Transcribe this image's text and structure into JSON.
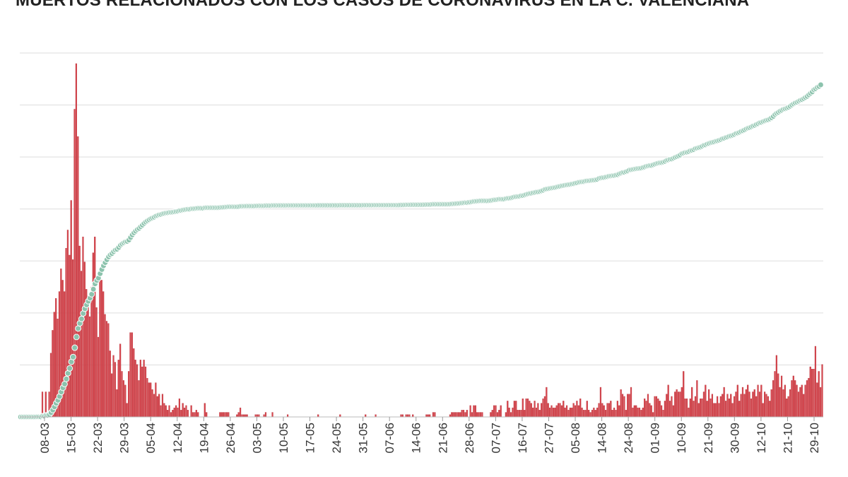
{
  "chart_data": {
    "type": "bar",
    "title": "MUERTOS RELACIONADOS CON LOS CASOS DE CORONAVIRUS EN LA C. VALENCIANA",
    "xlabel": "",
    "ylabel": "",
    "grid": true,
    "legend": "none",
    "colors": {
      "bars": "#d9474f",
      "bar_stroke": "#b8323a",
      "cumulative": "#8cc3ad",
      "grid": "#dddddd",
      "text": "#333333"
    },
    "x_tick_labels": [
      "08-03",
      "15-03",
      "22-03",
      "29-03",
      "05-04",
      "12-04",
      "19-04",
      "26-04",
      "03-05",
      "10-05",
      "17-05",
      "24-05",
      "31-05",
      "07-06",
      "14-06",
      "21-06",
      "28-06",
      "07-07",
      "16-07",
      "27-07",
      "05-08",
      "14-08",
      "24-08",
      "01-09",
      "10-09",
      "21-09",
      "30-09",
      "12-10",
      "21-10",
      "29-10"
    ],
    "bars": [
      0,
      0,
      0,
      0,
      0,
      0,
      0,
      0,
      0,
      0,
      1,
      0,
      0,
      11,
      0,
      11,
      0,
      11,
      28,
      38,
      46,
      52,
      43,
      55,
      65,
      60,
      55,
      74,
      82,
      71,
      95,
      69,
      135,
      155,
      123,
      75,
      64,
      79,
      68,
      56,
      53,
      44,
      57,
      72,
      79,
      48,
      35,
      64,
      60,
      55,
      45,
      42,
      41,
      29,
      19,
      27,
      24,
      12,
      25,
      32,
      20,
      16,
      14,
      6,
      20,
      37,
      37,
      30,
      25,
      23,
      16,
      25,
      22,
      25,
      22,
      17,
      15,
      15,
      12,
      10,
      15,
      9,
      10,
      5,
      10,
      6,
      5,
      3,
      5,
      2,
      3,
      4,
      5,
      4,
      8,
      3,
      6,
      4,
      5,
      3,
      0,
      5,
      2,
      2,
      3,
      2,
      0,
      0,
      0,
      6,
      2,
      0,
      0,
      0,
      0,
      0,
      0,
      0,
      2,
      2,
      2,
      2,
      2,
      2,
      0,
      0,
      0,
      0,
      1,
      2,
      4,
      1,
      1,
      1,
      1,
      0,
      0,
      0,
      0,
      1,
      1,
      1,
      0,
      0,
      1,
      2,
      0,
      0,
      0,
      2,
      0,
      0,
      0,
      0,
      0,
      0,
      0,
      0,
      1,
      0,
      0,
      0,
      0,
      0,
      0,
      0,
      0,
      0,
      0,
      0,
      0,
      0,
      0,
      0,
      0,
      0,
      1,
      0,
      0,
      0,
      0,
      0,
      0,
      0,
      0,
      0,
      0,
      0,
      0,
      1,
      0,
      0,
      0,
      0,
      0,
      0,
      0,
      0,
      0,
      0,
      0,
      0,
      0,
      0,
      1,
      0,
      0,
      0,
      0,
      0,
      1,
      0,
      0,
      0,
      0,
      0,
      0,
      0,
      0,
      0,
      0,
      0,
      0,
      0,
      0,
      1,
      1,
      0,
      1,
      1,
      1,
      0,
      1,
      0,
      0,
      0,
      0,
      0,
      0,
      0,
      1,
      1,
      1,
      0,
      2,
      2,
      0,
      0,
      0,
      0,
      0,
      0,
      0,
      0,
      1,
      2,
      2,
      2,
      2,
      2,
      2,
      3,
      3,
      2,
      3,
      0,
      5,
      2,
      5,
      5,
      2,
      2,
      2,
      2,
      0,
      0,
      0,
      0,
      2,
      3,
      5,
      5,
      2,
      3,
      5,
      0,
      0,
      2,
      7,
      4,
      2,
      4,
      7,
      7,
      3,
      3,
      3,
      8,
      3,
      8,
      8,
      7,
      6,
      4,
      7,
      4,
      6,
      3,
      6,
      8,
      9,
      13,
      6,
      4,
      5,
      4,
      4,
      5,
      6,
      6,
      5,
      7,
      4,
      5,
      3,
      4,
      4,
      6,
      5,
      7,
      5,
      8,
      4,
      3,
      3,
      7,
      3,
      2,
      3,
      4,
      3,
      4,
      6,
      13,
      6,
      5,
      3,
      6,
      6,
      7,
      3,
      4,
      3,
      7,
      5,
      12,
      10,
      9,
      3,
      10,
      10,
      13,
      4,
      5,
      5,
      4,
      4,
      3,
      4,
      8,
      7,
      10,
      6,
      5,
      2,
      9,
      9,
      8,
      7,
      5,
      3,
      7,
      10,
      14,
      7,
      9,
      5,
      11,
      12,
      11,
      11,
      13,
      20,
      8,
      8,
      4,
      8,
      13,
      7,
      9,
      16,
      6,
      8,
      8,
      11,
      14,
      7,
      12,
      8,
      10,
      6,
      6,
      9,
      6,
      9,
      10,
      13,
      7,
      10,
      8,
      10,
      6,
      9,
      11,
      14,
      7,
      10,
      13,
      10,
      12,
      14,
      11,
      8,
      11,
      12,
      9,
      14,
      11,
      14,
      6,
      11,
      10,
      9,
      7,
      12,
      16,
      20,
      27,
      19,
      13,
      18,
      12,
      14,
      8,
      9,
      12,
      16,
      18,
      16,
      14,
      11,
      13,
      14,
      10,
      14,
      16,
      17,
      22,
      21,
      21,
      31,
      15,
      20,
      13,
      23
    ],
    "cumulative": [
      0,
      0,
      0,
      0,
      0,
      0,
      0,
      0,
      0,
      0,
      1,
      1,
      1,
      12,
      12,
      23,
      23,
      34,
      62,
      100,
      146,
      198,
      241,
      296,
      361,
      421,
      476,
      550,
      632,
      703,
      798,
      867,
      1002,
      1157,
      1280,
      1355,
      1419,
      1498,
      1566,
      1622,
      1675,
      1719,
      1776,
      1848,
      1927,
      1975,
      2010,
      2074,
      2134,
      2189,
      2234,
      2276,
      2317,
      2346,
      2365,
      2392,
      2416,
      2428,
      2453,
      2485,
      2505,
      2521,
      2535,
      2541,
      2561,
      2598,
      2635,
      2665,
      2690,
      2713,
      2729,
      2754,
      2776,
      2801,
      2823,
      2840,
      2855,
      2870,
      2882,
      2892,
      2907,
      2916,
      2926,
      2931,
      2941,
      2947,
      2952,
      2955,
      2960,
      2962,
      2965,
      2969,
      2974,
      2978,
      2986,
      2989,
      2995,
      2999,
      3004,
      3007,
      3007,
      3012,
      3014,
      3016,
      3019,
      3021,
      3021,
      3021,
      3021,
      3027,
      3029,
      3029,
      3029,
      3029,
      3029,
      3029,
      3029,
      3029,
      3031,
      3033,
      3035,
      3037,
      3039,
      3041,
      3041,
      3041,
      3041,
      3041,
      3042,
      3044,
      3048,
      3049,
      3050,
      3051,
      3052,
      3052,
      3052,
      3052,
      3052,
      3053,
      3054,
      3055,
      3055,
      3055,
      3056,
      3058,
      3058,
      3058,
      3058,
      3060,
      3060,
      3060,
      3060,
      3060,
      3060,
      3060,
      3060,
      3060,
      3061,
      3061,
      3061,
      3061,
      3061,
      3061,
      3061,
      3061,
      3061,
      3061,
      3061,
      3061,
      3061,
      3061,
      3061,
      3061,
      3061,
      3061,
      3062,
      3062,
      3062,
      3062,
      3062,
      3062,
      3062,
      3062,
      3062,
      3062,
      3062,
      3062,
      3062,
      3063,
      3063,
      3063,
      3063,
      3063,
      3063,
      3063,
      3063,
      3063,
      3063,
      3063,
      3063,
      3063,
      3063,
      3064,
      3064,
      3064,
      3064,
      3064,
      3064,
      3065,
      3065,
      3065,
      3065,
      3065,
      3065,
      3065,
      3065,
      3065,
      3065,
      3065,
      3065,
      3065,
      3065,
      3065,
      3066,
      3067,
      3067,
      3068,
      3069,
      3070,
      3070,
      3071,
      3071,
      3071,
      3071,
      3071,
      3071,
      3071,
      3071,
      3072,
      3073,
      3074,
      3074,
      3076,
      3078,
      3078,
      3078,
      3078,
      3078,
      3078,
      3078,
      3078,
      3078,
      3079,
      3081,
      3083,
      3085,
      3087,
      3089,
      3091,
      3094,
      3097,
      3099,
      3102,
      3102,
      3107,
      3109,
      3114,
      3119,
      3121,
      3123,
      3125,
      3127,
      3127,
      3127,
      3127,
      3127,
      3129,
      3132,
      3137,
      3142,
      3144,
      3147,
      3152,
      3152,
      3152,
      3154,
      3161,
      3165,
      3167,
      3171,
      3178,
      3185,
      3188,
      3191,
      3194,
      3202,
      3205,
      3213,
      3221,
      3228,
      3234,
      3238,
      3245,
      3249,
      3255,
      3258,
      3264,
      3272,
      3281,
      3294,
      3300,
      3304,
      3309,
      3313,
      3317,
      3322,
      3328,
      3334,
      3339,
      3346,
      3350,
      3355,
      3358,
      3362,
      3366,
      3372,
      3377,
      3384,
      3389,
      3397,
      3401,
      3404,
      3407,
      3414,
      3417,
      3419,
      3422,
      3426,
      3429,
      3433,
      3439,
      3452,
      3458,
      3463,
      3466,
      3472,
      3478,
      3485,
      3488,
      3492,
      3495,
      3502,
      3507,
      3519,
      3529,
      3538,
      3541,
      3551,
      3561,
      3574,
      3578,
      3583,
      3588,
      3592,
      3596,
      3599,
      3603,
      3611,
      3618,
      3628,
      3634,
      3639,
      3641,
      3650,
      3659,
      3667,
      3674,
      3679,
      3682,
      3689,
      3699,
      3713,
      3720,
      3729,
      3734,
      3745,
      3757,
      3768,
      3779,
      3792,
      3812,
      3820,
      3828,
      3832,
      3840,
      3853,
      3860,
      3869,
      3885,
      3891,
      3899,
      3907,
      3918,
      3932,
      3939,
      3951,
      3959,
      3969,
      3975,
      3981,
      3990,
      3996,
      4005,
      4015,
      4028,
      4035,
      4045,
      4053,
      4063,
      4069,
      4078,
      4089,
      4103,
      4110,
      4120,
      4133,
      4143,
      4155,
      4169,
      4180,
      4188,
      4199,
      4211,
      4220,
      4234,
      4245,
      4259,
      4265,
      4276,
      4286,
      4295,
      4302,
      4314,
      4330,
      4350,
      4377,
      4396,
      4409,
      4427,
      4439,
      4453,
      4461,
      4470,
      4482,
      4498,
      4516,
      4532,
      4546,
      4557,
      4570,
      4584,
      4594,
      4608,
      4624,
      4641,
      4663,
      4684,
      4705,
      4736,
      4751,
      4771,
      4784,
      4807
    ]
  }
}
